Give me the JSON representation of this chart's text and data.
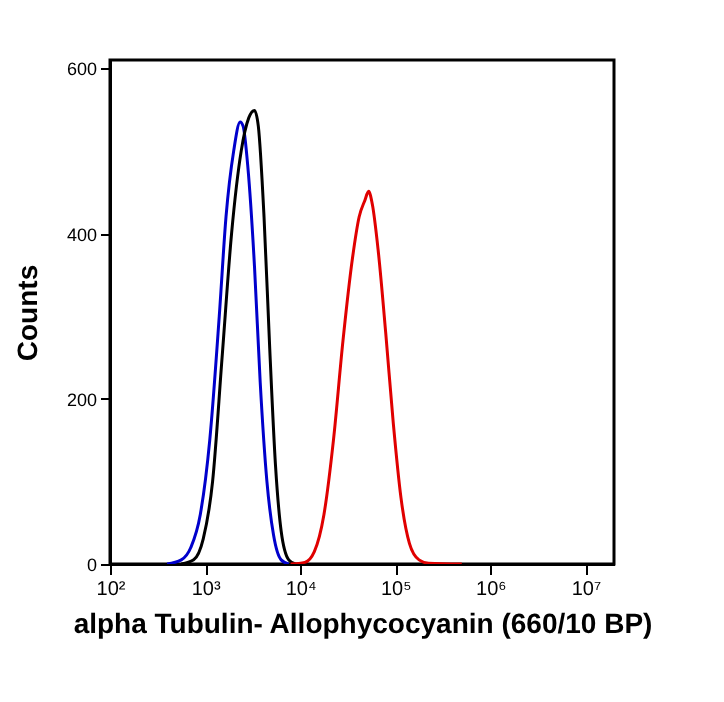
{
  "chart_data": {
    "type": "line",
    "xlabel": "alpha Tubulin- Allophycocyanin  (660/10 BP)",
    "ylabel": "Counts",
    "log": "x",
    "xlim": [
      100,
      20000000
    ],
    "xticks": [
      {
        "value": 100,
        "label": "10²"
      },
      {
        "value": 1000,
        "label": "10³"
      },
      {
        "value": 10000,
        "label": "10⁴"
      },
      {
        "value": 100000,
        "label": "10⁵"
      },
      {
        "value": 1000000,
        "label": "10⁶"
      },
      {
        "value": 10000000,
        "label": "10⁷"
      }
    ],
    "ylim": [
      0,
      610
    ],
    "yticks": [
      0,
      200,
      400,
      600
    ],
    "grid": false,
    "legend": false,
    "series": [
      {
        "color": "#0000cc",
        "x": [
          398,
          562,
          708,
          891,
          1120,
          1410,
          1660,
          2000,
          2340,
          2510,
          2820,
          3310,
          3800,
          4470,
          5250,
          6310,
          7590
        ],
        "values": [
          0,
          5,
          20,
          60,
          150,
          300,
          420,
          500,
          535,
          530,
          480,
          360,
          220,
          100,
          35,
          5,
          0
        ]
      },
      {
        "color": "#000000",
        "x": [
          562,
          759,
          955,
          1200,
          1510,
          1900,
          2400,
          2880,
          3310,
          3630,
          4170,
          4790,
          5500,
          6310,
          7590,
          8910
        ],
        "values": [
          0,
          5,
          30,
          100,
          250,
          400,
          500,
          540,
          549,
          530,
          420,
          260,
          120,
          40,
          5,
          0
        ]
      },
      {
        "color": "#e00000",
        "x": [
          7940,
          11200,
          14100,
          17800,
          22400,
          28200,
          35500,
          41700,
          47900,
          52500,
          57500,
          66100,
          79400,
          95500,
          115000,
          141000,
          178000,
          224000,
          501000
        ],
        "values": [
          0,
          2,
          15,
          60,
          150,
          270,
          370,
          420,
          440,
          451,
          435,
          380,
          280,
          170,
          80,
          25,
          5,
          1,
          0
        ]
      }
    ]
  }
}
